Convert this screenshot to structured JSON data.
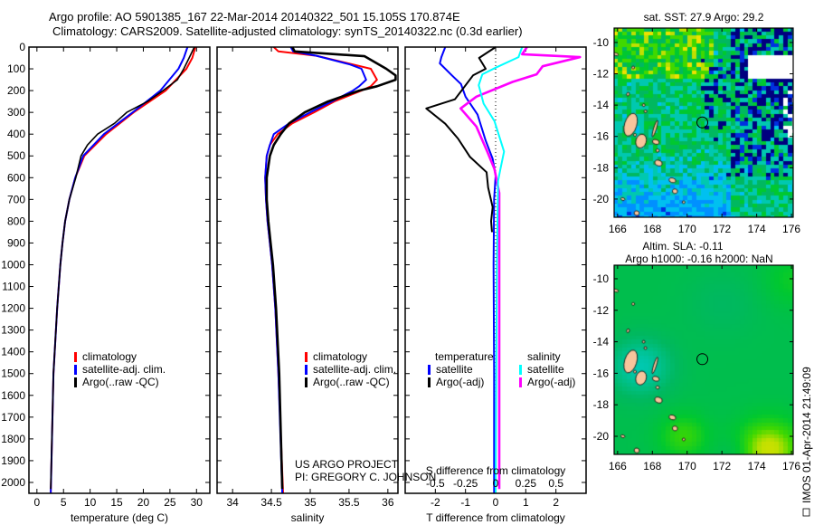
{
  "chart_data": {
    "type": "line",
    "title_lines": [
      "Argo profile: AO 5901385_167 22-Mar-2014 20140322_501 15.105S 170.874E",
      "Climatology: CARS2009. Satellite-adjusted climatology: synTS_20140322.nc (0.3d earlier)"
    ],
    "depth_axis": {
      "ylim": [
        0,
        2050
      ],
      "ticks": [
        "0",
        "100",
        "200",
        "300",
        "400",
        "500",
        "600",
        "700",
        "800",
        "900",
        "1000",
        "1100",
        "1200",
        "1300",
        "1400",
        "1500",
        "1600",
        "1700",
        "1800",
        "1900",
        "2000"
      ]
    },
    "panels": [
      {
        "name": "temperature",
        "xlabel": "temperature (deg C)",
        "xlim": [
          -1.5,
          32.5
        ],
        "xticks": [
          "0",
          "5",
          "10",
          "15",
          "20",
          "25",
          "30"
        ],
        "legend": [
          "climatology",
          "satellite-adj. clim.",
          "Argo(..raw -QC)"
        ],
        "series": [
          {
            "name": "climatology",
            "color": "#ff0000",
            "width": 2,
            "points": [
              [
                0,
                29.8
              ],
              [
                50,
                29.2
              ],
              [
                100,
                28.1
              ],
              [
                200,
                24.2
              ],
              [
                300,
                18.2
              ],
              [
                400,
                13.0
              ],
              [
                500,
                8.9
              ],
              [
                600,
                7.2
              ],
              [
                700,
                6.1
              ],
              [
                800,
                5.3
              ],
              [
                900,
                4.8
              ],
              [
                1000,
                4.4
              ],
              [
                1200,
                3.8
              ],
              [
                1500,
                3.1
              ],
              [
                2050,
                2.6
              ]
            ]
          },
          {
            "name": "satellite-adj. clim.",
            "color": "#0000ff",
            "width": 2,
            "points": [
              [
                0,
                28.3
              ],
              [
                50,
                27.6
              ],
              [
                100,
                26.6
              ],
              [
                200,
                23.2
              ],
              [
                300,
                18.0
              ],
              [
                400,
                12.6
              ],
              [
                500,
                8.7
              ],
              [
                600,
                7.2
              ],
              [
                700,
                6.1
              ],
              [
                800,
                5.3
              ],
              [
                900,
                4.8
              ],
              [
                1000,
                4.4
              ],
              [
                1200,
                3.8
              ],
              [
                1500,
                3.1
              ],
              [
                2050,
                2.6
              ]
            ]
          },
          {
            "name": "Argo(..raw -QC)",
            "color": "#000000",
            "width": 1.6,
            "points": [
              [
                0,
                29.6
              ],
              [
                50,
                28.6
              ],
              [
                100,
                27.6
              ],
              [
                150,
                26.4
              ],
              [
                200,
                23.7
              ],
              [
                250,
                20.8
              ],
              [
                300,
                16.9
              ],
              [
                350,
                14.6
              ],
              [
                400,
                11.4
              ],
              [
                450,
                9.5
              ],
              [
                500,
                8.3
              ],
              [
                600,
                7.3
              ],
              [
                700,
                6.1
              ],
              [
                800,
                5.3
              ],
              [
                900,
                4.8
              ],
              [
                1000,
                4.4
              ],
              [
                1200,
                3.8
              ],
              [
                1500,
                3.1
              ],
              [
                2030,
                2.6
              ]
            ]
          }
        ]
      },
      {
        "name": "salinity",
        "xlabel": "salinity",
        "xlim": [
          33.8,
          36.13
        ],
        "xticks": [
          "34",
          "34.5",
          "35",
          "35.5",
          "36"
        ],
        "legend": [
          "climatology",
          "satellite-adj. clim.",
          "Argo(..raw -QC)"
        ],
        "series": [
          {
            "name": "climatology",
            "color": "#ff0000",
            "width": 2,
            "points": [
              [
                0,
                34.53
              ],
              [
                20,
                34.59
              ],
              [
                40,
                35.08
              ],
              [
                80,
                35.55
              ],
              [
                100,
                35.78
              ],
              [
                150,
                35.86
              ],
              [
                180,
                35.78
              ],
              [
                200,
                35.66
              ],
              [
                250,
                35.31
              ],
              [
                300,
                35.05
              ],
              [
                350,
                34.77
              ],
              [
                400,
                34.58
              ],
              [
                450,
                34.48
              ],
              [
                500,
                34.44
              ],
              [
                600,
                34.42
              ],
              [
                700,
                34.43
              ],
              [
                800,
                34.45
              ],
              [
                900,
                34.48
              ],
              [
                1000,
                34.51
              ],
              [
                1200,
                34.55
              ],
              [
                1500,
                34.59
              ],
              [
                2050,
                34.65
              ]
            ]
          },
          {
            "name": "satellite-adj. clim.",
            "color": "#0000ff",
            "width": 2,
            "points": [
              [
                0,
                34.75
              ],
              [
                20,
                34.78
              ],
              [
                40,
                35.08
              ],
              [
                80,
                35.51
              ],
              [
                100,
                35.66
              ],
              [
                150,
                35.72
              ],
              [
                180,
                35.63
              ],
              [
                200,
                35.55
              ],
              [
                250,
                35.28
              ],
              [
                300,
                35.0
              ],
              [
                350,
                34.73
              ],
              [
                400,
                34.53
              ],
              [
                450,
                34.48
              ],
              [
                500,
                34.44
              ],
              [
                600,
                34.42
              ],
              [
                700,
                34.43
              ],
              [
                800,
                34.45
              ],
              [
                900,
                34.48
              ],
              [
                1000,
                34.51
              ],
              [
                1200,
                34.55
              ],
              [
                1500,
                34.59
              ],
              [
                2050,
                34.64
              ]
            ]
          },
          {
            "name": "Argo(..raw -QC)",
            "color": "#000000",
            "width": 2.6,
            "points": [
              [
                0,
                34.77
              ],
              [
                20,
                34.8
              ],
              [
                42,
                35.7
              ],
              [
                100,
                35.98
              ],
              [
                130,
                36.1
              ],
              [
                150,
                36.1
              ],
              [
                180,
                35.86
              ],
              [
                200,
                35.63
              ],
              [
                250,
                35.23
              ],
              [
                300,
                34.93
              ],
              [
                350,
                34.73
              ],
              [
                400,
                34.62
              ],
              [
                450,
                34.53
              ],
              [
                500,
                34.48
              ],
              [
                600,
                34.44
              ],
              [
                700,
                34.44
              ],
              [
                800,
                34.46
              ],
              [
                900,
                34.49
              ],
              [
                1000,
                34.52
              ],
              [
                1200,
                34.56
              ],
              [
                1500,
                34.6
              ],
              [
                2030,
                34.64
              ]
            ]
          }
        ],
        "credit": [
          "US ARGO PROJECT",
          "PI: GREGORY C. JOHNSON"
        ]
      },
      {
        "name": "difference",
        "xlabel": "T difference from climatology",
        "xlim": [
          -3,
          3
        ],
        "xticks": [
          "-2",
          "-1",
          "0",
          "1",
          "2"
        ],
        "s_label": "S difference from climatology",
        "s_scale": 4,
        "s_xticks": [
          "-0.5",
          "-0.25",
          "0",
          "0.25",
          "0.5"
        ],
        "legend_headers": [
          "temperature",
          "salinity"
        ],
        "legend": [
          "satellite",
          "Argo(-adj)",
          "satellite",
          "Argo(-adj)"
        ],
        "series": [
          {
            "name": "T satellite",
            "color": "#0000ff",
            "width": 2,
            "units": "T",
            "points": [
              [
                0,
                -1.67
              ],
              [
                46,
                -1.8
              ],
              [
                75,
                -1.85
              ],
              [
                130,
                -1.45
              ],
              [
                170,
                -1.15
              ],
              [
                228,
                -1.0
              ],
              [
                310,
                -0.6
              ],
              [
                430,
                -0.33
              ],
              [
                513,
                -0.1
              ],
              [
                590,
                0
              ],
              [
                700,
                -0.05
              ],
              [
                1000,
                -0.07
              ],
              [
                1500,
                -0.05
              ],
              [
                2050,
                -0.05
              ]
            ]
          },
          {
            "name": "T Argo(-adj)",
            "color": "#000000",
            "width": 2,
            "units": "T",
            "points": [
              [
                0,
                0
              ],
              [
                50,
                -0.55
              ],
              [
                100,
                -0.33
              ],
              [
                130,
                -0.75
              ],
              [
                240,
                -1.35
              ],
              [
                282,
                -2.3
              ],
              [
                352,
                -1.67
              ],
              [
                420,
                -1.25
              ],
              [
                505,
                -0.85
              ],
              [
                575,
                -0.3
              ],
              [
                645,
                -0.25
              ],
              [
                735,
                -0.1
              ],
              [
                800,
                -0.15
              ],
              [
                850,
                -0.12
              ]
            ]
          },
          {
            "name": "S Argo(-adj)",
            "color": "#ff00ff",
            "width": 2.6,
            "units": "S",
            "points": [
              [
                0,
                0.26
              ],
              [
                33,
                0.22
              ],
              [
                46,
                0.7
              ],
              [
                88,
                0.39
              ],
              [
                125,
                0.34
              ],
              [
                160,
                0.14
              ],
              [
                228,
                -0.16
              ],
              [
                282,
                -0.29
              ],
              [
                365,
                -0.16
              ],
              [
                480,
                -0.07
              ],
              [
                560,
                -0.01
              ],
              [
                670,
                0.03
              ],
              [
                1000,
                0.03
              ],
              [
                2030,
                0.03
              ]
            ]
          },
          {
            "name": "S satellite",
            "color": "#00ffff",
            "width": 2,
            "units": "S",
            "points": [
              [
                0,
                0.22
              ],
              [
                46,
                0.19
              ],
              [
                95,
                0
              ],
              [
                125,
                -0.11
              ],
              [
                175,
                -0.14
              ],
              [
                260,
                -0.1
              ],
              [
                340,
                -0.01
              ],
              [
                480,
                0.07
              ],
              [
                560,
                0.04
              ],
              [
                615,
                0.02
              ],
              [
                1000,
                0.01
              ],
              [
                2050,
                0.0
              ]
            ]
          }
        ]
      }
    ],
    "maps": [
      {
        "name": "sst",
        "title_lines": [
          "sat. SST: 27.9 Argo: 29.2"
        ],
        "lon_ticks": [
          "166",
          "168",
          "170",
          "172",
          "174",
          "176"
        ],
        "lat_ticks": [
          "-10",
          "-12",
          "-14",
          "-16",
          "-18",
          "-20"
        ],
        "lon_range": [
          165.8,
          176.1
        ],
        "lat_range": [
          -21.16,
          -9.08
        ],
        "marker": {
          "lon": 170.874,
          "lat": -15.105
        }
      },
      {
        "name": "sla",
        "title_lines": [
          "Altim. SLA: -0.11",
          "Argo h1000: -0.16 h2000: NaN"
        ],
        "lon_ticks": [
          "166",
          "168",
          "170",
          "172",
          "174",
          "176"
        ],
        "lat_ticks": [
          "-10",
          "-12",
          "-14",
          "-16",
          "-18",
          "-20"
        ],
        "lon_range": [
          165.8,
          176.1
        ],
        "lat_range": [
          -21.15,
          -9.14
        ],
        "marker": {
          "lon": 170.874,
          "lat": -15.105
        }
      }
    ],
    "footer_stamp": "IMOS 01-Apr-2014 21:49:09",
    "colors": {
      "land": "#f8c49c",
      "missing": "#ffffff"
    }
  }
}
